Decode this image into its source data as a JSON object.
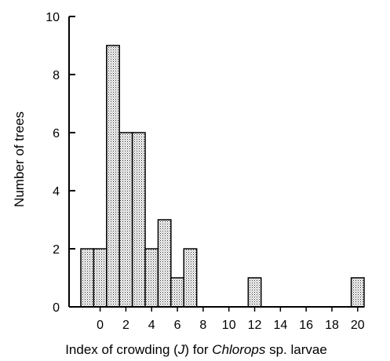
{
  "chart_data": {
    "type": "bar",
    "ylabel": "Number of trees",
    "xlabel_parts": {
      "prefix": "Index of crowding (",
      "var": "J",
      "middle": ") for ",
      "genus": "Chlorops",
      "suffix": " sp. larvae"
    },
    "x_ticks": [
      "0",
      "2",
      "4",
      "6",
      "8",
      "10",
      "12",
      "14",
      "16",
      "18",
      "20"
    ],
    "y_ticks": [
      "0",
      "2",
      "4",
      "6",
      "8",
      "10"
    ],
    "ylim": [
      0,
      10
    ],
    "xlim": [
      -1,
      21
    ],
    "bin_width": 1,
    "bars": [
      {
        "x": -1,
        "value": 2
      },
      {
        "x": 0,
        "value": 2
      },
      {
        "x": 1,
        "value": 9
      },
      {
        "x": 2,
        "value": 6
      },
      {
        "x": 3,
        "value": 6
      },
      {
        "x": 4,
        "value": 2
      },
      {
        "x": 5,
        "value": 3
      },
      {
        "x": 6,
        "value": 1
      },
      {
        "x": 7,
        "value": 2
      },
      {
        "x": 12,
        "value": 1
      },
      {
        "x": 20,
        "value": 1
      }
    ],
    "bar_fill": "stippled",
    "grid": false
  }
}
